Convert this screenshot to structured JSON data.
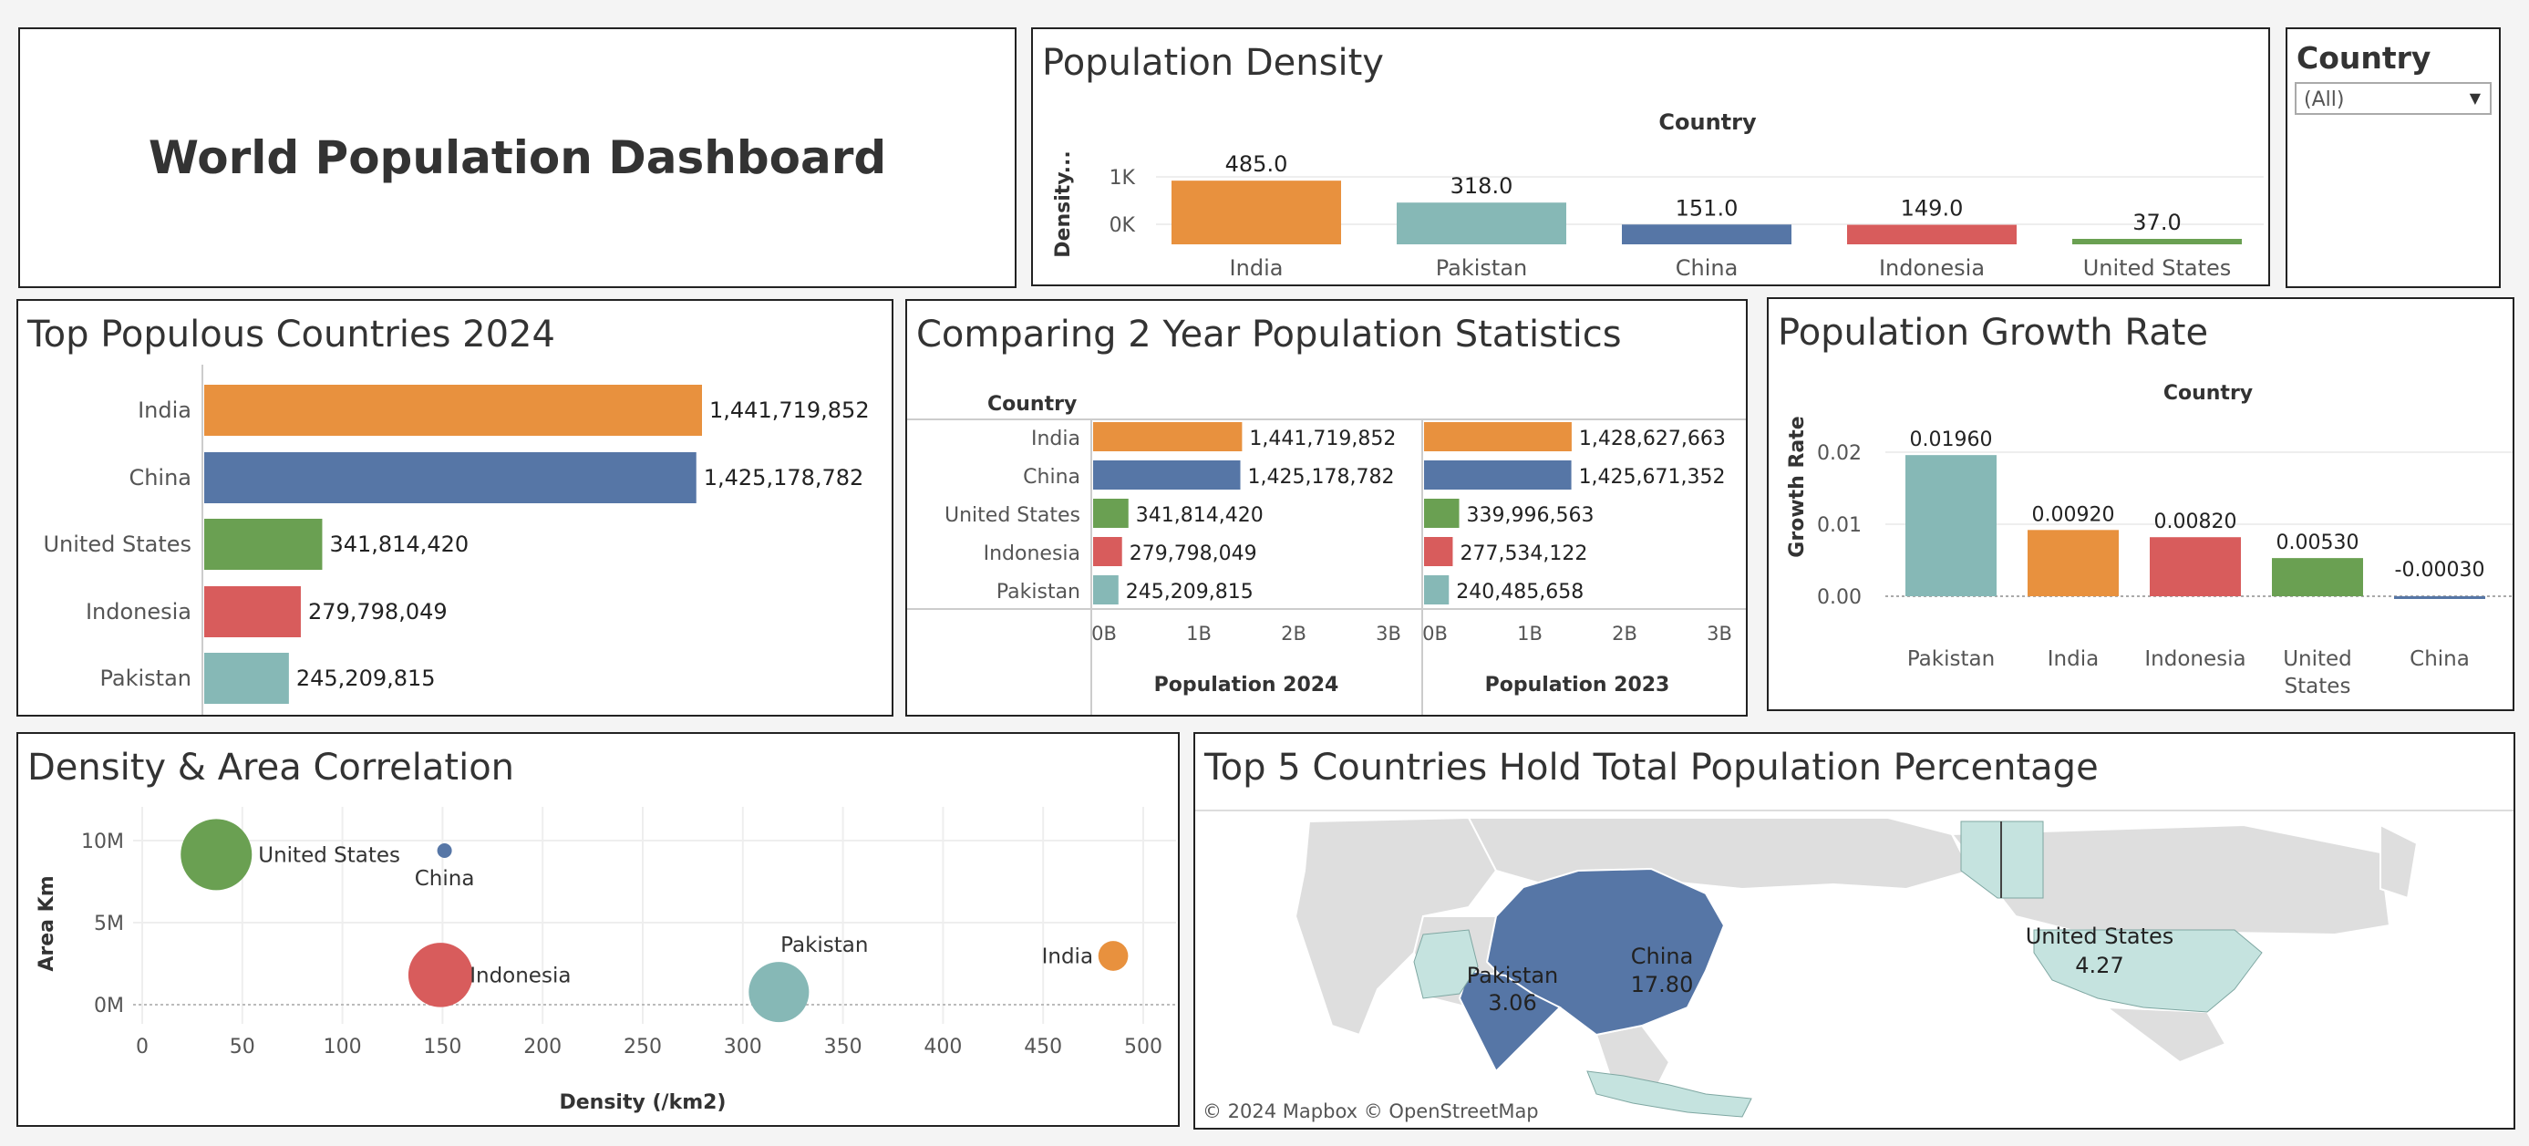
{
  "dashboard": {
    "title": "World Population Dashboard"
  },
  "filter": {
    "title": "Country",
    "selected": "(All)"
  },
  "colors": {
    "India": "#e8913e",
    "China": "#5676a6",
    "United States": "#6aa052",
    "Indonesia": "#d85c5c",
    "Pakistan": "#86b8b6"
  },
  "density_panel": {
    "title": "Population Density"
  },
  "top_populous_panel": {
    "title": "Top Populous Countries 2024"
  },
  "comparison_panel": {
    "title": "Comparing 2 Year Population Statistics"
  },
  "growth_panel": {
    "title": "Population Growth Rate"
  },
  "correlation_panel": {
    "title": "Density & Area Correlation"
  },
  "map_panel": {
    "title": "Top 5 Countries Hold Total Population Percentage",
    "credit": "© 2024 Mapbox  © OpenStreetMap",
    "labels": [
      {
        "country": "China",
        "value": "17.80"
      },
      {
        "country": "Pakistan",
        "value": "3.06"
      },
      {
        "country": "United States",
        "value": "4.27"
      }
    ]
  },
  "chart_data": [
    {
      "id": "density",
      "type": "bar",
      "title": "Population Density",
      "xlabel": "Country",
      "ylabel": "Density...",
      "categories": [
        "India",
        "Pakistan",
        "China",
        "Indonesia",
        "United States"
      ],
      "values": [
        485.0,
        318.0,
        151.0,
        149.0,
        37.0
      ],
      "data_labels": [
        "485.0",
        "318.0",
        "151.0",
        "149.0",
        "37.0"
      ],
      "yticks": [
        "1K",
        "0K"
      ]
    },
    {
      "id": "top_populous",
      "type": "bar",
      "orientation": "horizontal",
      "title": "Top Populous Countries 2024",
      "categories": [
        "India",
        "China",
        "United States",
        "Indonesia",
        "Pakistan"
      ],
      "values": [
        1441719852,
        1425178782,
        341814420,
        279798049,
        245209815
      ],
      "data_labels": [
        "1,441,719,852",
        "1,425,178,782",
        "341,814,420",
        "279,798,049",
        "245,209,815"
      ]
    },
    {
      "id": "comparison",
      "type": "bar",
      "orientation": "horizontal",
      "title": "Comparing 2 Year Population Statistics",
      "row_header": "Country",
      "categories": [
        "India",
        "China",
        "United States",
        "Indonesia",
        "Pakistan"
      ],
      "xticks": [
        "0B",
        "1B",
        "2B",
        "3B"
      ],
      "xlim": [
        0,
        3000000000
      ],
      "series": [
        {
          "name": "Population 2024",
          "values": [
            1441719852,
            1425178782,
            341814420,
            279798049,
            245209815
          ],
          "data_labels": [
            "1,441,719,852",
            "1,425,178,782",
            "341,814,420",
            "279,798,049",
            "245,209,815"
          ]
        },
        {
          "name": "Population 2023",
          "values": [
            1428627663,
            1425671352,
            339996563,
            277534122,
            240485658
          ],
          "data_labels": [
            "1,428,627,663",
            "1,425,671,352",
            "339,996,563",
            "277,534,122",
            "240,485,658"
          ]
        }
      ]
    },
    {
      "id": "growth",
      "type": "bar",
      "title": "Population Growth Rate",
      "xlabel": "Country",
      "ylabel": "Growth Rate",
      "categories": [
        "Pakistan",
        "India",
        "Indonesia",
        "United States",
        "China"
      ],
      "values": [
        0.0196,
        0.0092,
        0.0082,
        0.0053,
        -0.0003
      ],
      "data_labels": [
        "0.01960",
        "0.00920",
        "0.00820",
        "0.00530",
        "-0.00030"
      ],
      "yticks": [
        "0.02",
        "0.01",
        "0.00"
      ],
      "ylim": [
        0,
        0.02
      ]
    },
    {
      "id": "correlation",
      "type": "scatter",
      "title": "Density & Area Correlation",
      "xlabel": "Density (/km2)",
      "ylabel": "Area Km",
      "xticks": [
        "0",
        "50",
        "100",
        "150",
        "200",
        "250",
        "300",
        "350",
        "400",
        "450",
        "500"
      ],
      "yticks": [
        "10M",
        "5M",
        "0M"
      ],
      "xlim": [
        0,
        510
      ],
      "ylim": [
        -500000,
        11000000
      ],
      "points": [
        {
          "name": "United States",
          "x": 37,
          "y": 9147420,
          "size": 341814420
        },
        {
          "name": "China",
          "x": 151,
          "y": 9388211,
          "size": 10000000
        },
        {
          "name": "Indonesia",
          "x": 149,
          "y": 1811570,
          "size": 279798049
        },
        {
          "name": "Pakistan",
          "x": 318,
          "y": 770880,
          "size": 245209815
        },
        {
          "name": "India",
          "x": 485,
          "y": 2973190,
          "size": 60000000
        }
      ]
    }
  ]
}
